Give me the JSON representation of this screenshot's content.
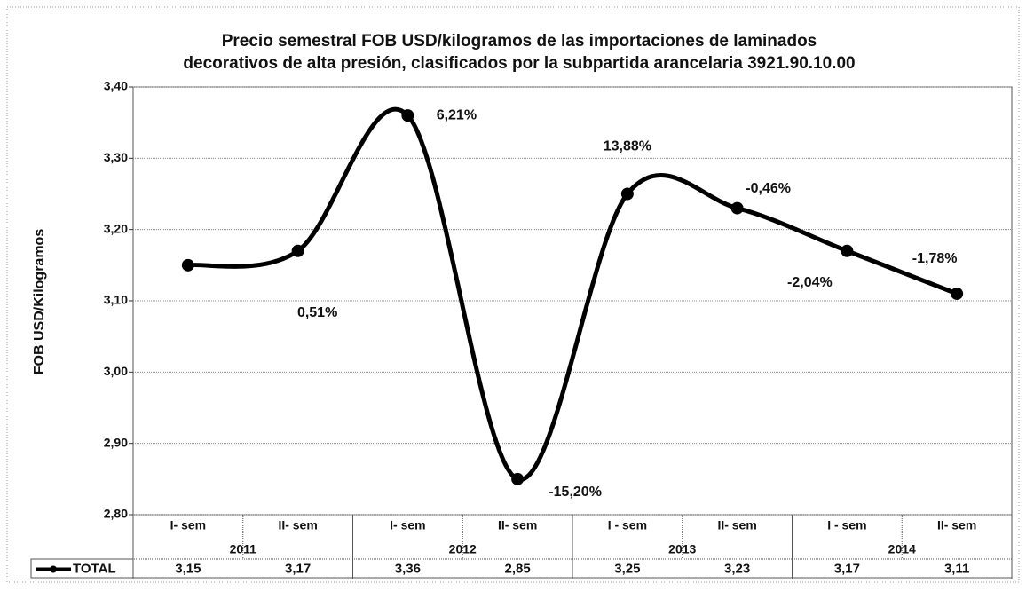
{
  "chart_data": {
    "type": "line",
    "title": [
      "Precio semestral FOB USD/kilogramos de las importaciones de laminados",
      "decorativos de alta presión, clasificados por la subpartida arancelaria 3921.90.10.00"
    ],
    "y_label": "FOB USD/Kilogramos",
    "categories": [
      "I- sem",
      "II- sem",
      "I- sem",
      "II- sem",
      "I - sem",
      "II- sem",
      "I - sem",
      "II- sem"
    ],
    "x_groups": [
      "2011",
      "2012",
      "2013",
      "2014"
    ],
    "series": [
      {
        "name": "TOTAL",
        "color": "#000000",
        "values": [
          3.15,
          3.17,
          3.36,
          2.85,
          3.25,
          3.23,
          3.17,
          3.11
        ],
        "value_labels": [
          "3,15",
          "3,17",
          "3,36",
          "2,85",
          "3,25",
          "3,23",
          "3,17",
          "3,11"
        ],
        "change_labels": [
          null,
          "0,51%",
          "6,21%",
          "-15,20%",
          "13,88%",
          "-0,46%",
          "-2,04%",
          "-1,78%"
        ]
      }
    ],
    "ylim": [
      2.8,
      3.4
    ],
    "yticks": [
      {
        "value": 2.8,
        "label": "2,80"
      },
      {
        "value": 2.9,
        "label": "2,90"
      },
      {
        "value": 3.0,
        "label": "3,00"
      },
      {
        "value": 3.1,
        "label": "3,10"
      },
      {
        "value": 3.2,
        "label": "3,20"
      },
      {
        "value": 3.3,
        "label": "3,30"
      },
      {
        "value": 3.4,
        "label": "3,40"
      }
    ],
    "grid": true,
    "smooth": true
  }
}
